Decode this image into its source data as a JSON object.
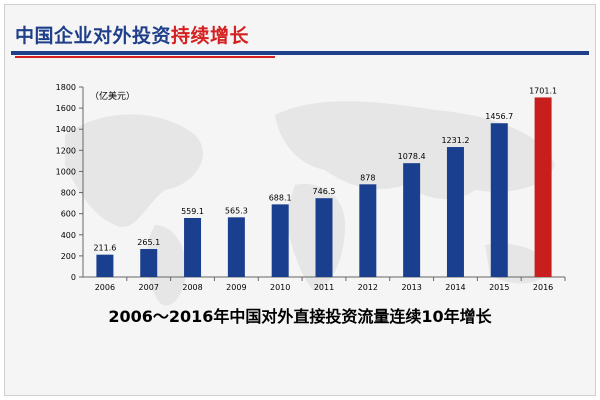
{
  "header": {
    "title_main": "中国企业对外投资",
    "title_accent": "持续增长"
  },
  "footer": {
    "subtitle": "2006～2016年中国对外直接投资流量连续10年增长"
  },
  "colors": {
    "title_blue": "#1f3f8a",
    "accent_red": "#d42020",
    "bar_blue": "#1b3f8f",
    "bar_red": "#c81e1e"
  },
  "chart_data": {
    "type": "bar",
    "unit_label": "（亿美元）",
    "categories": [
      "2006",
      "2007",
      "2008",
      "2009",
      "2010",
      "2011",
      "2012",
      "2013",
      "2014",
      "2015",
      "2016"
    ],
    "values": [
      211.6,
      265.1,
      559.1,
      565.3,
      688.1,
      746.5,
      878,
      1078.4,
      1231.2,
      1456.7,
      1701.1
    ],
    "data_labels": [
      "211.6",
      "265.1",
      "559.1",
      "565.3",
      "688.1",
      "746.5",
      "878",
      "1078.4",
      "1231.2",
      "1456.7",
      "1701.1"
    ],
    "highlight_category": "2016",
    "ylim": [
      0,
      1800
    ],
    "yticks": [
      0,
      200,
      400,
      600,
      800,
      1000,
      1200,
      1400,
      1600,
      1800
    ],
    "grid": false
  }
}
